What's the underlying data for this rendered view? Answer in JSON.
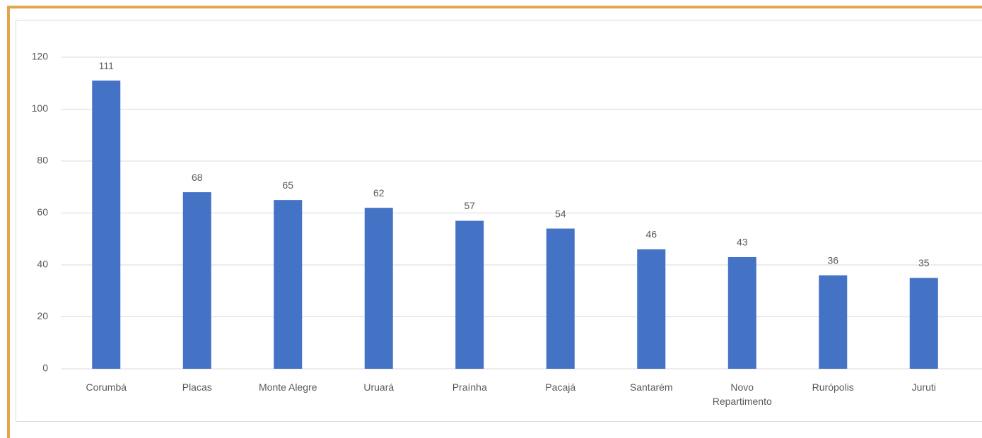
{
  "chart_data": {
    "type": "bar",
    "categories": [
      "Corumbá",
      "Placas",
      "Monte Alegre",
      "Uruará",
      "Praínha",
      "Pacajá",
      "Santarém",
      "Novo Repartimento",
      "Rurópolis",
      "Juruti"
    ],
    "values": [
      111,
      68,
      65,
      62,
      57,
      54,
      46,
      43,
      36,
      35
    ],
    "color": "#4472c4",
    "ylim": [
      0,
      120
    ],
    "yticks": [
      0,
      20,
      40,
      60,
      80,
      100,
      120
    ],
    "grid": true
  }
}
